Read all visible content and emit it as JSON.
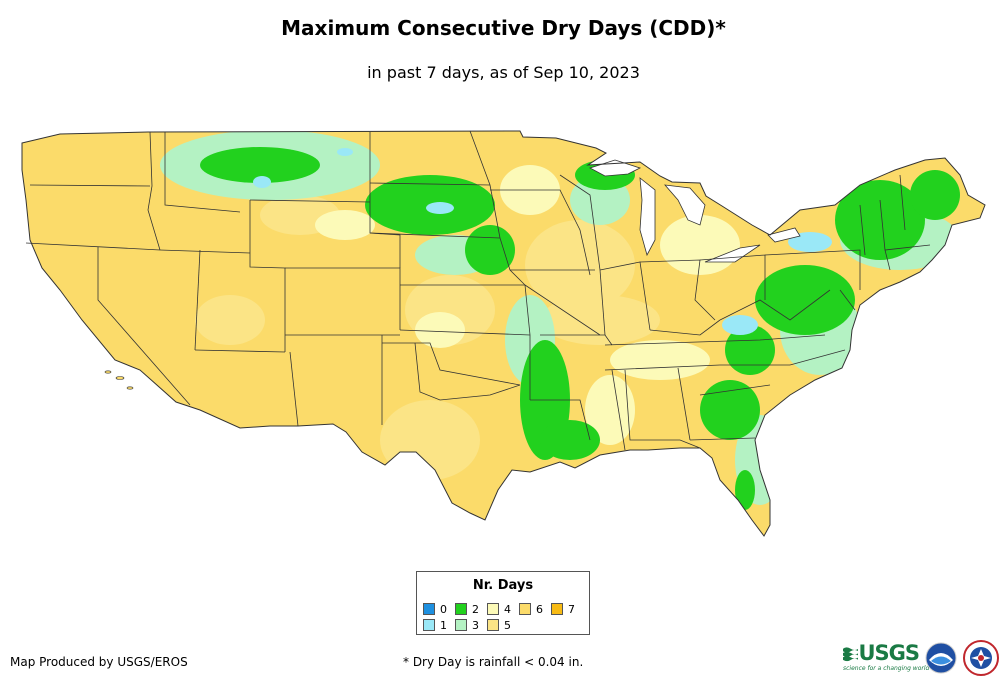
{
  "title": "Maximum Consecutive Dry Days (CDD)*",
  "subtitle": "in past 7 days, as of Sep 10, 2023",
  "legend": {
    "title": "Nr. Days",
    "items": [
      {
        "label": "0",
        "color": "#1e90e0"
      },
      {
        "label": "1",
        "color": "#9ae8f7"
      },
      {
        "label": "2",
        "color": "#22d11e"
      },
      {
        "label": "3",
        "color": "#b4f2c3"
      },
      {
        "label": "4",
        "color": "#fcfab8"
      },
      {
        "label": "5",
        "color": "#fbe486"
      },
      {
        "label": "6",
        "color": "#fbdb6a"
      },
      {
        "label": "7",
        "color": "#f8bb14"
      }
    ]
  },
  "footer": {
    "produced_by": "Map Produced by USGS/EROS",
    "note": "* Dry Day is rainfall < 0.04 in."
  },
  "logos": {
    "usgs_text": "USGS",
    "usgs_tagline": "science for a changing world",
    "noaa_text": "noaa",
    "nws_text": "NATIONAL WEATHER SERVICE"
  }
}
